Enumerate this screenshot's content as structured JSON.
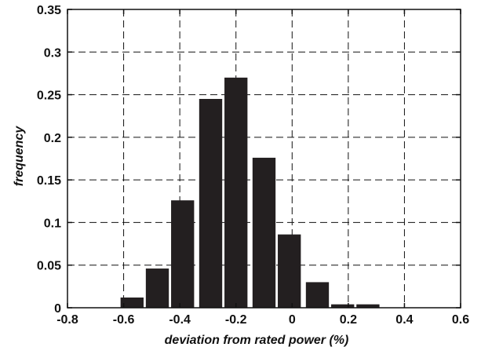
{
  "chart_data": {
    "type": "bar",
    "title": "",
    "xlabel": "deviation from rated power (%)",
    "ylabel": "frequency",
    "xlim": [
      -0.8,
      0.6
    ],
    "ylim": [
      0,
      0.35
    ],
    "grid": true,
    "bar_color": "#231f20",
    "x_ticks": [
      "-0.8",
      "-0.6",
      "-0.4",
      "-0.2",
      "0",
      "0.2",
      "0.4",
      "0.6"
    ],
    "y_ticks": [
      "0",
      "0.05",
      "0.1",
      "0.15",
      "0.2",
      "0.25",
      "0.3",
      "0.35"
    ],
    "bins": [
      {
        "center": -0.57,
        "value": 0.012
      },
      {
        "center": -0.48,
        "value": 0.046
      },
      {
        "center": -0.39,
        "value": 0.126
      },
      {
        "center": -0.29,
        "value": 0.245
      },
      {
        "center": -0.2,
        "value": 0.27
      },
      {
        "center": -0.1,
        "value": 0.176
      },
      {
        "center": -0.01,
        "value": 0.086
      },
      {
        "center": 0.09,
        "value": 0.03
      },
      {
        "center": 0.18,
        "value": 0.004
      },
      {
        "center": 0.27,
        "value": 0.004
      }
    ],
    "bin_width": 0.082
  }
}
